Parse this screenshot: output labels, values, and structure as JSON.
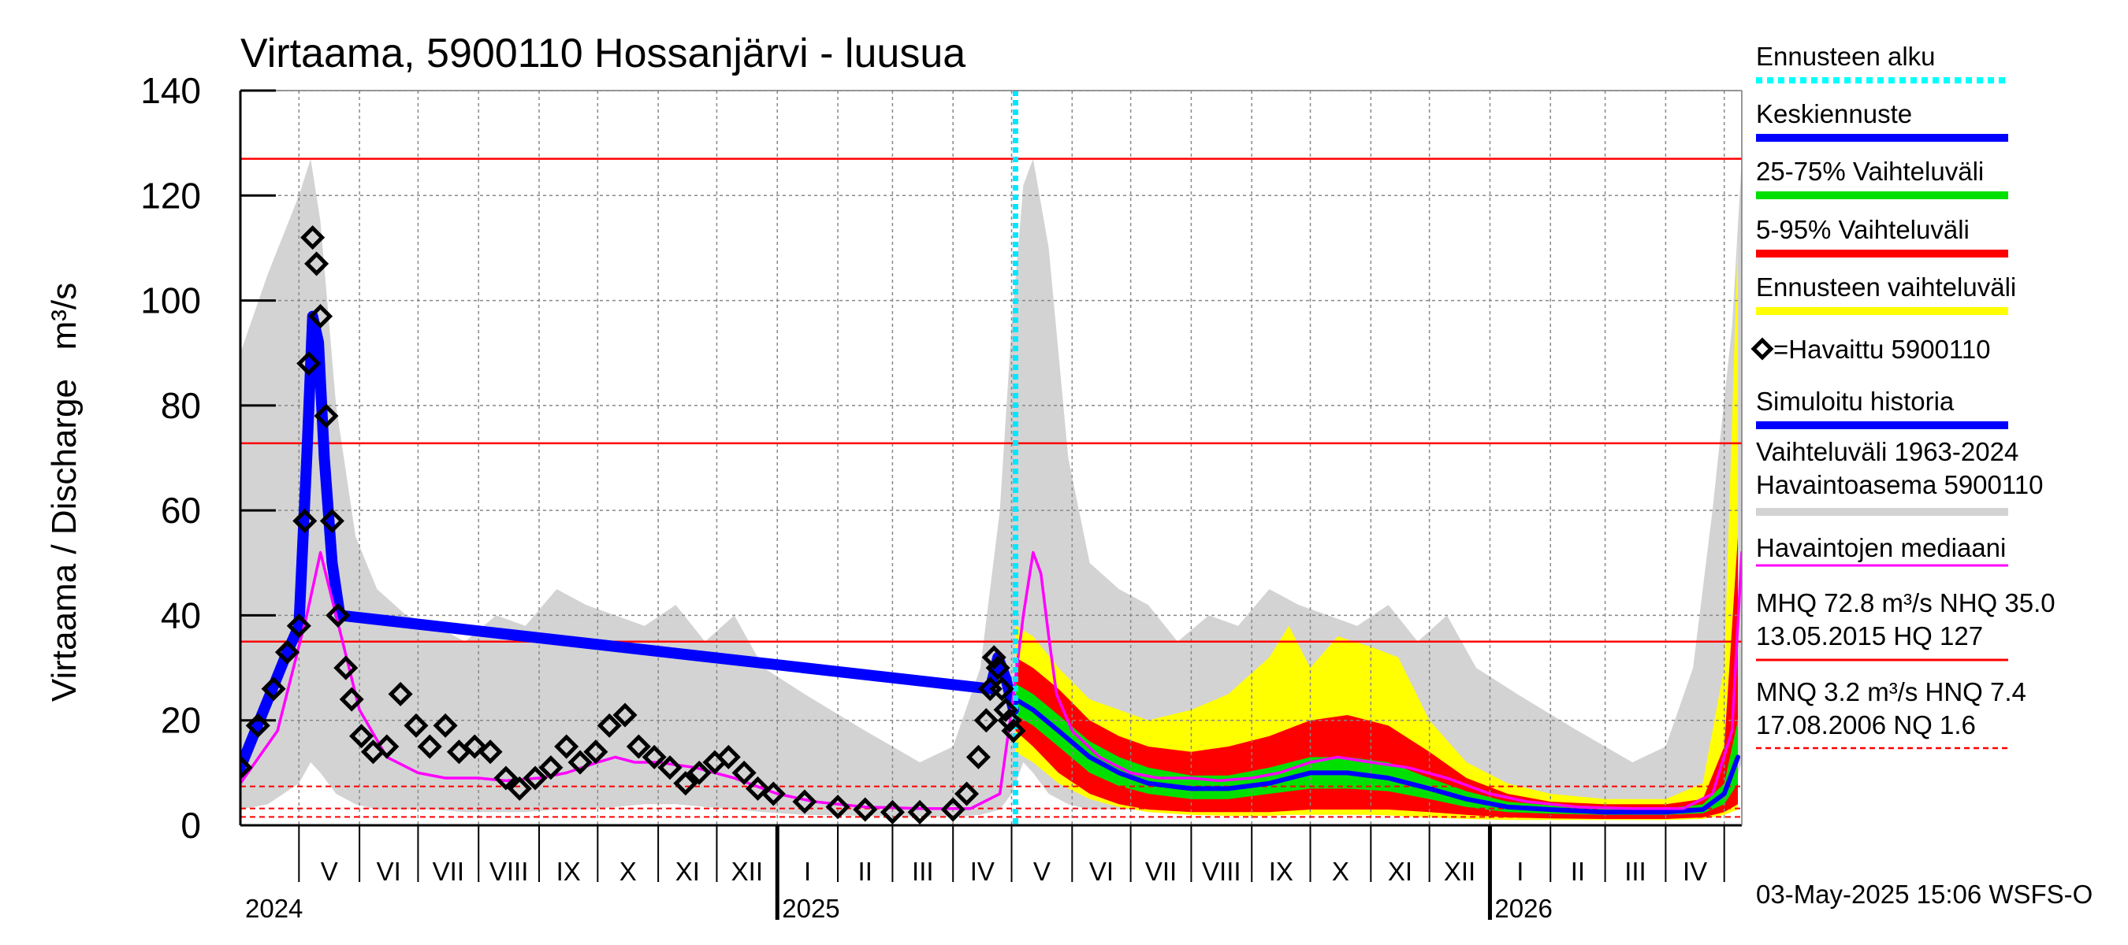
{
  "chart_data": {
    "type": "line",
    "title": "Virtaama, 5900110 Hossanjärvi - luusua",
    "ylabel": "Virtaama / Discharge   m³/s",
    "ylim": [
      0,
      140
    ],
    "y_ticks": [
      0,
      20,
      40,
      60,
      80,
      100,
      120,
      140
    ],
    "x_start": "2024-04-01",
    "x_end": "2026-05-10",
    "month_labels": [
      "V",
      "VI",
      "VII",
      "VIII",
      "IX",
      "X",
      "XI",
      "XII",
      "I",
      "II",
      "III",
      "IV",
      "V",
      "VI",
      "VII",
      "VIII",
      "IX",
      "X",
      "XI",
      "XII",
      "I",
      "II",
      "III",
      "IV"
    ],
    "year_labels": [
      "2024",
      "2025",
      "2026"
    ],
    "forecast_start": "2025-05-03",
    "reference_lines": [
      {
        "name": "HQ",
        "value": 127,
        "style": "solid"
      },
      {
        "name": "MHQ",
        "value": 72.8,
        "style": "solid"
      },
      {
        "name": "NHQ",
        "value": 35.0,
        "style": "solid"
      },
      {
        "name": "HNQ",
        "value": 7.4,
        "style": "dashed"
      },
      {
        "name": "MNQ",
        "value": 3.2,
        "style": "dashed"
      },
      {
        "name": "NQ",
        "value": 1.6,
        "style": "dashed"
      }
    ],
    "series": [
      {
        "name": "Havaittu 5900110",
        "kind": "observed",
        "x": [
          "2024-04-01",
          "2024-04-10",
          "2024-04-18",
          "2024-04-25",
          "2024-05-01",
          "2024-05-04",
          "2024-05-06",
          "2024-05-08",
          "2024-05-10",
          "2024-05-12",
          "2024-05-15",
          "2024-05-18",
          "2024-05-21",
          "2024-05-25",
          "2024-05-28",
          "2024-06-02",
          "2024-06-08",
          "2024-06-15",
          "2024-06-22",
          "2024-06-30",
          "2024-07-07",
          "2024-07-15",
          "2024-07-22",
          "2024-07-30",
          "2024-08-07",
          "2024-08-15",
          "2024-08-22",
          "2024-08-30",
          "2024-09-07",
          "2024-09-15",
          "2024-09-22",
          "2024-09-30",
          "2024-10-07",
          "2024-10-15",
          "2024-10-22",
          "2024-10-30",
          "2024-11-07",
          "2024-11-15",
          "2024-11-22",
          "2024-11-30",
          "2024-12-07",
          "2024-12-15",
          "2024-12-22",
          "2024-12-30",
          "2025-01-15",
          "2025-02-01",
          "2025-02-15",
          "2025-03-01",
          "2025-03-15",
          "2025-04-01",
          "2025-04-08",
          "2025-04-14",
          "2025-04-18",
          "2025-04-20",
          "2025-04-22",
          "2025-04-24",
          "2025-04-26",
          "2025-04-28",
          "2025-04-30",
          "2025-05-02"
        ],
        "values": [
          11,
          19,
          26,
          33,
          38,
          58,
          88,
          112,
          107,
          97,
          78,
          58,
          40,
          30,
          24,
          17,
          14,
          15,
          25,
          19,
          15,
          19,
          14,
          15,
          14,
          9,
          7,
          9,
          11,
          15,
          12,
          14,
          19,
          21,
          15,
          13,
          11,
          8,
          10,
          12,
          13,
          10,
          7,
          6,
          4.5,
          3.5,
          3,
          2.5,
          2.5,
          3,
          6,
          13,
          20,
          26,
          32,
          30,
          26,
          22,
          20,
          18
        ]
      },
      {
        "name": "Simuloitu historia",
        "kind": "simulated",
        "x": [
          "2024-04-01",
          "2024-04-25",
          "2024-05-01",
          "2024-05-05",
          "2024-05-08",
          "2024-05-11",
          "2024-05-14",
          "2024-05-18",
          "2024-05-22",
          "2025-04-20",
          "2025-04-24",
          "2025-04-28",
          "2025-05-02"
        ],
        "values": [
          11,
          33,
          38,
          70,
          97,
          92,
          70,
          50,
          40,
          26,
          32,
          28,
          22
        ]
      },
      {
        "name": "Havaintojen mediaani",
        "kind": "median",
        "x": [
          "2024-04-01",
          "2024-04-20",
          "2024-05-05",
          "2024-05-12",
          "2024-05-20",
          "2024-06-01",
          "2024-06-15",
          "2024-07-01",
          "2024-07-15",
          "2024-08-01",
          "2024-08-15",
          "2024-09-01",
          "2024-09-15",
          "2024-10-01",
          "2024-10-10",
          "2024-10-20",
          "2024-11-01",
          "2024-11-20",
          "2024-12-10",
          "2025-01-01",
          "2025-01-20",
          "2025-02-15",
          "2025-03-15",
          "2025-04-10",
          "2025-04-25",
          "2025-05-01",
          "2025-05-07",
          "2025-05-12",
          "2025-05-16",
          "2025-05-20",
          "2025-05-24",
          "2025-06-01",
          "2025-06-15",
          "2025-07-01",
          "2025-07-15",
          "2025-08-01",
          "2025-08-15",
          "2025-09-01",
          "2025-09-15",
          "2025-10-01",
          "2025-10-15",
          "2025-11-01",
          "2025-11-20",
          "2025-12-10",
          "2026-01-01",
          "2026-01-20",
          "2026-02-15",
          "2026-03-15",
          "2026-04-10",
          "2026-04-25",
          "2026-05-05",
          "2026-05-10"
        ],
        "values": [
          8,
          18,
          40,
          52,
          40,
          22,
          13,
          10,
          9,
          9,
          8.5,
          9,
          10,
          12,
          13,
          12,
          12,
          11,
          9,
          6,
          4.5,
          3.5,
          3.2,
          3.2,
          6,
          22,
          40,
          52,
          48,
          36,
          25,
          18,
          13,
          10,
          9,
          9,
          8.5,
          9,
          10,
          12,
          13,
          12,
          11,
          9,
          6,
          4.5,
          3.5,
          3.2,
          3.2,
          6,
          18,
          52
        ]
      },
      {
        "name": "Keskiennuste",
        "kind": "forecast_median",
        "x": [
          "2025-05-03",
          "2025-05-12",
          "2025-05-25",
          "2025-06-10",
          "2025-06-25",
          "2025-07-10",
          "2025-08-01",
          "2025-08-20",
          "2025-09-10",
          "2025-10-01",
          "2025-10-20",
          "2025-11-10",
          "2025-12-01",
          "2025-12-20",
          "2026-01-10",
          "2026-02-01",
          "2026-03-01",
          "2026-04-01",
          "2026-04-20",
          "2026-05-01",
          "2026-05-08"
        ],
        "values": [
          24,
          22,
          18,
          13,
          10,
          8,
          7,
          7,
          8,
          10,
          10,
          9,
          7,
          5,
          3.5,
          3,
          2.5,
          2.5,
          3,
          6,
          13
        ]
      },
      {
        "name": "Ennusteen alku",
        "kind": "forecast_start_marker",
        "x": [
          "2025-05-03"
        ],
        "values": [
          0
        ]
      }
    ],
    "bands": [
      {
        "name": "Vaihteluväli 1963-2024 Havaintoasema 5900110",
        "color": "#d3d3d3",
        "x": [
          "2024-04-01",
          "2024-04-15",
          "2024-05-01",
          "2024-05-07",
          "2024-05-12",
          "2024-05-20",
          "2024-05-30",
          "2024-06-10",
          "2024-06-25",
          "2024-07-10",
          "2024-07-25",
          "2024-08-10",
          "2024-08-25",
          "2024-09-10",
          "2024-09-25",
          "2024-10-10",
          "2024-10-25",
          "2024-11-10",
          "2024-11-25",
          "2024-12-10",
          "2024-12-25",
          "2025-01-15",
          "2025-02-15",
          "2025-03-15",
          "2025-04-01",
          "2025-04-15",
          "2025-04-25",
          "2025-05-01",
          "2025-05-07",
          "2025-05-12",
          "2025-05-20",
          "2025-05-30",
          "2025-06-10",
          "2025-06-25",
          "2025-07-10",
          "2025-07-25",
          "2025-08-10",
          "2025-08-25",
          "2025-09-10",
          "2025-09-25",
          "2025-10-10",
          "2025-10-25",
          "2025-11-10",
          "2025-11-25",
          "2025-12-10",
          "2025-12-25",
          "2026-01-15",
          "2026-02-15",
          "2026-03-15",
          "2026-04-01",
          "2026-04-15",
          "2026-04-25",
          "2026-05-05",
          "2026-05-10"
        ],
        "low": [
          3,
          4,
          8,
          12,
          10,
          6,
          4,
          3,
          3,
          3,
          2.5,
          2.5,
          2.5,
          3,
          3,
          3.5,
          4,
          4,
          3.5,
          3,
          2.5,
          2,
          1.8,
          1.6,
          1.6,
          2,
          3,
          6,
          12,
          10,
          6,
          4,
          3,
          3,
          3,
          2.5,
          2.5,
          2.5,
          3,
          3,
          3.5,
          4,
          4,
          3.5,
          3,
          2.5,
          2,
          1.8,
          1.6,
          1.6,
          2,
          3,
          6,
          12
        ],
        "high": [
          90,
          105,
          120,
          127,
          115,
          80,
          55,
          45,
          40,
          38,
          35,
          40,
          38,
          45,
          42,
          40,
          38,
          42,
          35,
          40,
          30,
          25,
          18,
          12,
          15,
          30,
          60,
          95,
          122,
          127,
          110,
          70,
          50,
          45,
          42,
          35,
          40,
          38,
          45,
          42,
          40,
          38,
          42,
          35,
          40,
          30,
          25,
          18,
          12,
          15,
          30,
          60,
          95,
          127
        ]
      },
      {
        "name": "Ennusteen vaihteluväli",
        "color": "#ffff00",
        "x": [
          "2025-05-03",
          "2025-05-12",
          "2025-05-25",
          "2025-06-10",
          "2025-06-25",
          "2025-07-10",
          "2025-08-01",
          "2025-08-20",
          "2025-09-10",
          "2025-09-20",
          "2025-10-01",
          "2025-10-15",
          "2025-11-01",
          "2025-11-15",
          "2025-12-01",
          "2025-12-20",
          "2026-01-10",
          "2026-02-01",
          "2026-03-01",
          "2026-04-01",
          "2026-04-20",
          "2026-05-01",
          "2026-05-08"
        ],
        "low": [
          14,
          12,
          8,
          5,
          3.5,
          2.5,
          2,
          1.8,
          1.8,
          2,
          2,
          2,
          2,
          1.8,
          1.5,
          1.2,
          1,
          1,
          1,
          1,
          1.2,
          2,
          3
        ],
        "high": [
          38,
          36,
          30,
          24,
          22,
          20,
          22,
          25,
          32,
          38,
          30,
          36,
          34,
          32,
          20,
          12,
          8,
          6,
          5,
          5,
          8,
          30,
          112
        ]
      },
      {
        "name": "5-95% Vaihteluväli",
        "color": "#ff0000",
        "x": [
          "2025-05-03",
          "2025-05-12",
          "2025-05-25",
          "2025-06-10",
          "2025-06-25",
          "2025-07-10",
          "2025-08-01",
          "2025-08-20",
          "2025-09-10",
          "2025-10-01",
          "2025-10-20",
          "2025-11-10",
          "2025-12-01",
          "2025-12-20",
          "2026-01-10",
          "2026-02-01",
          "2026-03-01",
          "2026-04-01",
          "2026-04-20",
          "2026-05-01",
          "2026-05-08"
        ],
        "low": [
          18,
          15,
          10,
          6,
          4,
          3,
          2.5,
          2.5,
          2.5,
          3,
          3,
          3,
          2.5,
          2,
          1.5,
          1.3,
          1.2,
          1.2,
          1.5,
          2.5,
          4
        ],
        "high": [
          32,
          30,
          26,
          20,
          17,
          15,
          14,
          15,
          17,
          20,
          21,
          19,
          14,
          9,
          6,
          4.5,
          4,
          4,
          5,
          15,
          55
        ]
      },
      {
        "name": "25-75% Vaihteluväli",
        "color": "#00e000",
        "x": [
          "2025-05-03",
          "2025-05-12",
          "2025-05-25",
          "2025-06-10",
          "2025-06-25",
          "2025-07-10",
          "2025-08-01",
          "2025-08-20",
          "2025-09-10",
          "2025-10-01",
          "2025-10-20",
          "2025-11-10",
          "2025-12-01",
          "2025-12-20",
          "2026-01-10",
          "2026-02-01",
          "2026-03-01",
          "2026-04-01",
          "2026-04-20",
          "2026-05-01",
          "2026-05-08"
        ],
        "low": [
          21,
          19,
          15,
          10,
          7.5,
          6,
          5,
          5,
          6,
          7,
          7,
          6.5,
          5,
          3.5,
          2.5,
          2.2,
          2,
          2,
          2.3,
          4,
          8
        ],
        "high": [
          27,
          25,
          21,
          16,
          13,
          11,
          9.5,
          9.5,
          11,
          13,
          13,
          12,
          9,
          6.5,
          4.5,
          3.8,
          3.2,
          3.2,
          4,
          8,
          20
        ]
      }
    ],
    "legend": [
      {
        "label": "Ennusteen alku",
        "color": "#00ffff",
        "style": "dotted"
      },
      {
        "label": "Keskiennuste",
        "color": "#0000ff",
        "style": "line"
      },
      {
        "label": "25-75% Vaihteluväli",
        "color": "#00e000",
        "style": "line"
      },
      {
        "label": "5-95% Vaihteluväli",
        "color": "#ff0000",
        "style": "line"
      },
      {
        "label": "Ennusteen vaihteluväli",
        "color": "#ffff00",
        "style": "line"
      },
      {
        "label": "=Havaittu 5900110",
        "color": "#000000",
        "style": "diamond"
      },
      {
        "label": "Simuloitu historia",
        "color": "#0000ff",
        "style": "line"
      },
      {
        "label": "Vaihteluväli 1963-2024\n Havaintoasema 5900110",
        "color": "#d3d3d3",
        "style": "line"
      },
      {
        "label": "Havaintojen mediaani",
        "color": "#ff00ff",
        "style": "thin"
      },
      {
        "label": "MHQ 72.8 m³/s NHQ 35.0\n13.05.2015 HQ  127",
        "color": "#ff0000",
        "style": "thin"
      },
      {
        "label": "MNQ  3.2 m³/s HNQ  7.4\n17.08.2006 NQ  1.6",
        "color": "#ff0000",
        "style": "dashed"
      }
    ],
    "footer": "03-May-2025 15:06 WSFS-O"
  }
}
